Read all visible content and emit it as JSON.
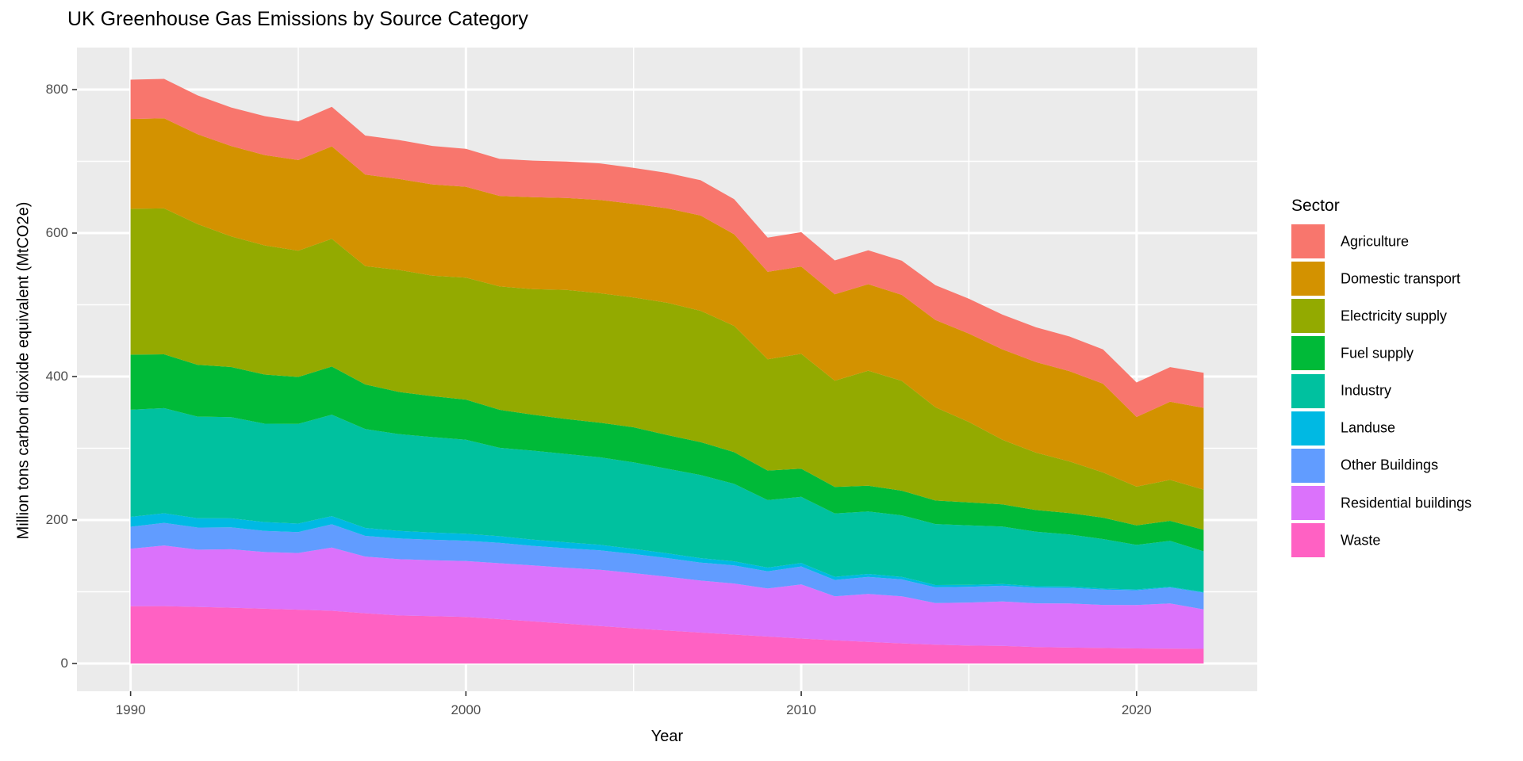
{
  "title": "UK Greenhouse Gas Emissions by Source Category",
  "axes": {
    "x_label": "Year",
    "y_label": "Million tons carbon dioxide equivalent (MtCO2e)",
    "x_ticks": [
      1990,
      2000,
      2010,
      2020
    ],
    "x_minor_gridlines": [
      1995,
      2005,
      2015
    ],
    "y_ticks": [
      0,
      200,
      400,
      600,
      800
    ],
    "y_minor_gridlines": [
      100,
      300,
      500,
      700
    ]
  },
  "legend": {
    "title": "Sector",
    "items": [
      {
        "label": "Agriculture",
        "color": "#F8766D"
      },
      {
        "label": "Domestic transport",
        "color": "#D39200"
      },
      {
        "label": "Electricity supply",
        "color": "#93AA00"
      },
      {
        "label": "Fuel supply",
        "color": "#00BA38"
      },
      {
        "label": "Industry",
        "color": "#00C19F"
      },
      {
        "label": "Landuse",
        "color": "#00B9E3"
      },
      {
        "label": "Other Buildings",
        "color": "#619CFF"
      },
      {
        "label": "Residential buildings",
        "color": "#DB72FB"
      },
      {
        "label": "Waste",
        "color": "#FF61C3"
      }
    ]
  },
  "chart_data": {
    "type": "area",
    "stacked": true,
    "title": "UK Greenhouse Gas Emissions by Source Category",
    "xlabel": "Year",
    "ylabel": "Million tons carbon dioxide equivalent (MtCO2e)",
    "panel_background": "#EBEBEB",
    "gridline_color": "#FFFFFF",
    "legend_position": "right",
    "x_range_data": [
      1990,
      2022
    ],
    "x_range_panel": [
      1988.4,
      2023.6
    ],
    "y_range_panel": [
      -38.7,
      858.6
    ],
    "stack_order_bottom_to_top": [
      "Waste",
      "Residential buildings",
      "Other Buildings",
      "Landuse",
      "Industry",
      "Fuel supply",
      "Electricity supply",
      "Domestic transport",
      "Agriculture"
    ],
    "x": [
      1990,
      1991,
      1992,
      1993,
      1994,
      1995,
      1996,
      1997,
      1998,
      1999,
      2000,
      2001,
      2002,
      2003,
      2004,
      2005,
      2006,
      2007,
      2008,
      2009,
      2010,
      2011,
      2012,
      2013,
      2014,
      2015,
      2016,
      2017,
      2018,
      2019,
      2020,
      2021,
      2022
    ],
    "series": [
      {
        "name": "Agriculture",
        "color": "#F8766D",
        "values": [
          54.8,
          55.0,
          54.2,
          53.7,
          54.2,
          53.9,
          55.0,
          54.4,
          54.3,
          53.6,
          53.0,
          51.5,
          51.0,
          50.7,
          50.9,
          50.1,
          49.3,
          49.2,
          48.9,
          47.6,
          47.9,
          47.2,
          47.3,
          47.7,
          48.4,
          48.6,
          48.5,
          48.5,
          48.3,
          47.8,
          48.0,
          48.2,
          49.0
        ]
      },
      {
        "name": "Domestic transport",
        "color": "#D39200",
        "values": [
          125.2,
          125.6,
          125.3,
          126.1,
          126.0,
          126.3,
          129.0,
          127.6,
          126.8,
          127.3,
          126.7,
          126.3,
          128.2,
          128.2,
          130.0,
          130.4,
          131.7,
          132.8,
          127.8,
          122.0,
          121.7,
          120.6,
          120.5,
          119.9,
          121.7,
          123.2,
          126.0,
          126.2,
          125.8,
          123.8,
          97.2,
          109.0,
          114.0
        ]
      },
      {
        "name": "Electricity supply",
        "color": "#93AA00",
        "values": [
          203.3,
          203.5,
          196.0,
          182.0,
          180.0,
          176.0,
          178.0,
          165.0,
          170.0,
          168.0,
          170.0,
          171.9,
          175.0,
          180.0,
          180.5,
          181.0,
          184.5,
          183.0,
          176.0,
          155.0,
          160.0,
          148.0,
          160.5,
          153.0,
          130.0,
          112.0,
          90.0,
          80.0,
          72.0,
          63.0,
          54.0,
          57.0,
          56.0
        ]
      },
      {
        "name": "Fuel supply",
        "color": "#00BA38",
        "values": [
          76.8,
          75.0,
          72.3,
          70.0,
          68.5,
          65.5,
          67.0,
          62.0,
          58.8,
          57.0,
          56.0,
          53.0,
          50.1,
          48.9,
          48.3,
          49.0,
          46.8,
          45.8,
          44.2,
          41.3,
          39.3,
          36.9,
          35.9,
          34.4,
          32.8,
          32.0,
          31.0,
          30.2,
          29.9,
          29.8,
          27.2,
          28.0,
          30.0
        ]
      },
      {
        "name": "Industry",
        "color": "#00C19F",
        "values": [
          149.3,
          146.5,
          141.6,
          141.0,
          137.2,
          139.0,
          141.5,
          138.0,
          135.0,
          133.0,
          131.0,
          123.3,
          124.0,
          123.0,
          122.0,
          120.5,
          118.0,
          116.0,
          108.0,
          94.0,
          92.3,
          88.3,
          87.0,
          85.7,
          85.0,
          83.0,
          80.0,
          76.0,
          72.5,
          69.0,
          62.0,
          64.0,
          56.8
        ]
      },
      {
        "name": "Landuse",
        "color": "#00B9E3",
        "values": [
          13.8,
          13.4,
          13.0,
          12.6,
          12.2,
          11.8,
          11.4,
          11.0,
          10.6,
          10.1,
          9.7,
          9.2,
          8.7,
          8.2,
          7.7,
          7.2,
          6.7,
          6.2,
          5.7,
          5.2,
          4.8,
          4.4,
          4.0,
          3.6,
          3.2,
          2.8,
          2.4,
          2.1,
          1.8,
          1.5,
          1.2,
          0.9,
          0.7
        ]
      },
      {
        "name": "Other Buildings",
        "color": "#619CFF",
        "values": [
          30.6,
          31.5,
          30.8,
          30.5,
          29.6,
          29.2,
          32.5,
          28.9,
          28.8,
          28.5,
          28.3,
          28.4,
          27.3,
          27.2,
          27.0,
          26.6,
          25.9,
          25.0,
          25.2,
          24.0,
          24.9,
          22.9,
          23.8,
          23.5,
          21.9,
          21.9,
          21.9,
          21.7,
          21.8,
          21.4,
          20.6,
          22.3,
          23.4
        ]
      },
      {
        "name": "Residential buildings",
        "color": "#DB72FB",
        "values": [
          80.2,
          84.5,
          79.8,
          81.4,
          79.0,
          79.0,
          88.0,
          79.0,
          78.5,
          78.0,
          78.0,
          77.9,
          78.0,
          78.0,
          78.5,
          77.0,
          75.0,
          72.5,
          71.2,
          67.0,
          75.5,
          61.3,
          67.0,
          65.7,
          58.0,
          60.0,
          62.0,
          61.0,
          61.5,
          60.0,
          60.5,
          63.0,
          55.0
        ]
      },
      {
        "name": "Waste",
        "color": "#FF61C3",
        "values": [
          79.8,
          80.0,
          78.9,
          77.8,
          76.3,
          75.0,
          73.5,
          70.0,
          66.9,
          66.0,
          64.8,
          61.9,
          58.7,
          55.5,
          52.2,
          49.0,
          46.0,
          43.1,
          40.3,
          37.5,
          34.8,
          32.3,
          30.0,
          28.0,
          26.3,
          24.9,
          24.5,
          22.9,
          22.2,
          21.6,
          21.0,
          20.7,
          20.4
        ]
      }
    ]
  }
}
